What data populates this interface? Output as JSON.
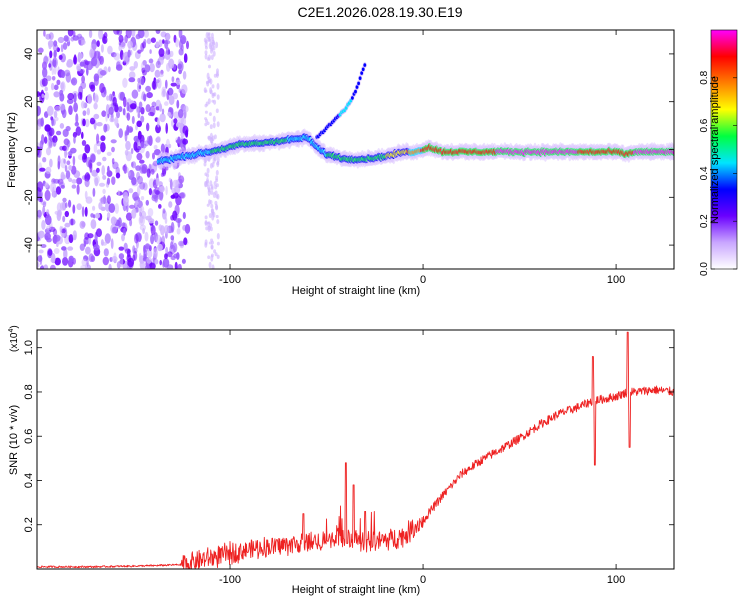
{
  "title": "C2E1.2026.028.19.30.E19",
  "chart_data": [
    {
      "type": "heatmap",
      "name": "spectrogram",
      "xlabel": "Height of straight line (km)",
      "ylabel": "Frequency (Hz)",
      "xlim": [
        -200,
        130
      ],
      "ylim": [
        -50,
        50
      ],
      "xticks": [
        -100,
        0,
        100
      ],
      "xtick_labels": [
        "-100",
        "0",
        "100"
      ],
      "yticks": [
        -40,
        -20,
        0,
        20,
        40
      ],
      "ytick_labels": [
        "-40",
        "-20",
        "0",
        "20",
        "40"
      ],
      "colorbar": {
        "label": "Normalized spectral amplitude",
        "range": [
          0,
          1
        ],
        "ticks": [
          0,
          0.2,
          0.4,
          0.6,
          0.8
        ],
        "tick_labels": [
          "0.0",
          "0.2",
          "0.4",
          "0.6",
          "0.8"
        ],
        "colormap": [
          "#ffffff",
          "#c9a6ff",
          "#6a00ff",
          "#0000ff",
          "#00e5ff",
          "#00ff40",
          "#ffff00",
          "#ff7f00",
          "#ff0000",
          "#ff00ff"
        ]
      },
      "noise_region_x": [
        -200,
        -122
      ],
      "ridge": {
        "x": [
          -137,
          -125,
          -110,
          -95,
          -80,
          -70,
          -60,
          -55,
          -50,
          -45,
          -40,
          -30,
          -20,
          -10,
          -3,
          0,
          3,
          10,
          20,
          40,
          60,
          80,
          90,
          100,
          105,
          110,
          130
        ],
        "freq": [
          -5,
          -3,
          -1,
          2,
          3,
          4,
          5,
          1,
          -2,
          -3,
          -4,
          -4,
          -3,
          -1,
          -1,
          0,
          1,
          -1,
          -1,
          -1,
          -1,
          -1,
          -1,
          -1,
          -2,
          -1,
          -1
        ],
        "amplitude": [
          0.45,
          0.45,
          0.5,
          0.55,
          0.5,
          0.5,
          0.45,
          0.4,
          0.5,
          0.5,
          0.5,
          0.55,
          0.6,
          0.7,
          0.8,
          0.85,
          0.85,
          0.85,
          0.9,
          0.95,
          0.95,
          0.95,
          0.85,
          0.9,
          0.9,
          0.95,
          0.95
        ]
      },
      "branch": {
        "x": [
          -55,
          -50,
          -45,
          -40,
          -35,
          -30
        ],
        "freq": [
          5,
          9,
          13,
          17,
          24,
          36
        ],
        "amplitude": [
          0.3,
          0.35,
          0.35,
          0.45,
          0.35,
          0.3
        ]
      }
    },
    {
      "type": "line",
      "name": "snr",
      "xlabel": "Height of straight line (km)",
      "ylabel": "SNR (10 * v/v)",
      "y_scale_label": "(x10",
      "y_scale_exp": "4",
      "y_scale_close": ")",
      "xlim": [
        -200,
        130
      ],
      "ylim": [
        0,
        1.08
      ],
      "xticks": [
        -100,
        0,
        100
      ],
      "xtick_labels": [
        "-100",
        "0",
        "100"
      ],
      "yticks": [
        0.2,
        0.4,
        0.6,
        0.8,
        1.0
      ],
      "ytick_labels": [
        "0.2",
        "0.4",
        "0.6",
        "0.8",
        "1.0"
      ],
      "color": "#ee2222",
      "series": [
        {
          "name": "SNR",
          "x": [
            -200,
            -170,
            -140,
            -125,
            -115,
            -100,
            -90,
            -80,
            -70,
            -60,
            -50,
            -40,
            -30,
            -20,
            -10,
            0,
            10,
            20,
            30,
            40,
            50,
            60,
            70,
            80,
            88,
            95,
            100,
            106,
            110,
            120,
            130
          ],
          "y": [
            0.01,
            0.01,
            0.015,
            0.02,
            0.04,
            0.07,
            0.09,
            0.1,
            0.11,
            0.12,
            0.13,
            0.14,
            0.12,
            0.13,
            0.15,
            0.22,
            0.33,
            0.43,
            0.49,
            0.54,
            0.59,
            0.65,
            0.7,
            0.73,
            0.76,
            0.77,
            0.78,
            0.8,
            0.8,
            0.81,
            0.8
          ]
        }
      ],
      "spikes": [
        {
          "x": -40,
          "y": 0.48
        },
        {
          "x": -36,
          "y": 0.38
        },
        {
          "x": -30,
          "y": 0.26
        },
        {
          "x": -62,
          "y": 0.25
        },
        {
          "x": 88,
          "y": 0.96
        },
        {
          "x": 89,
          "y": 0.47
        },
        {
          "x": 106,
          "y": 1.07
        },
        {
          "x": 107,
          "y": 0.55
        }
      ]
    }
  ]
}
